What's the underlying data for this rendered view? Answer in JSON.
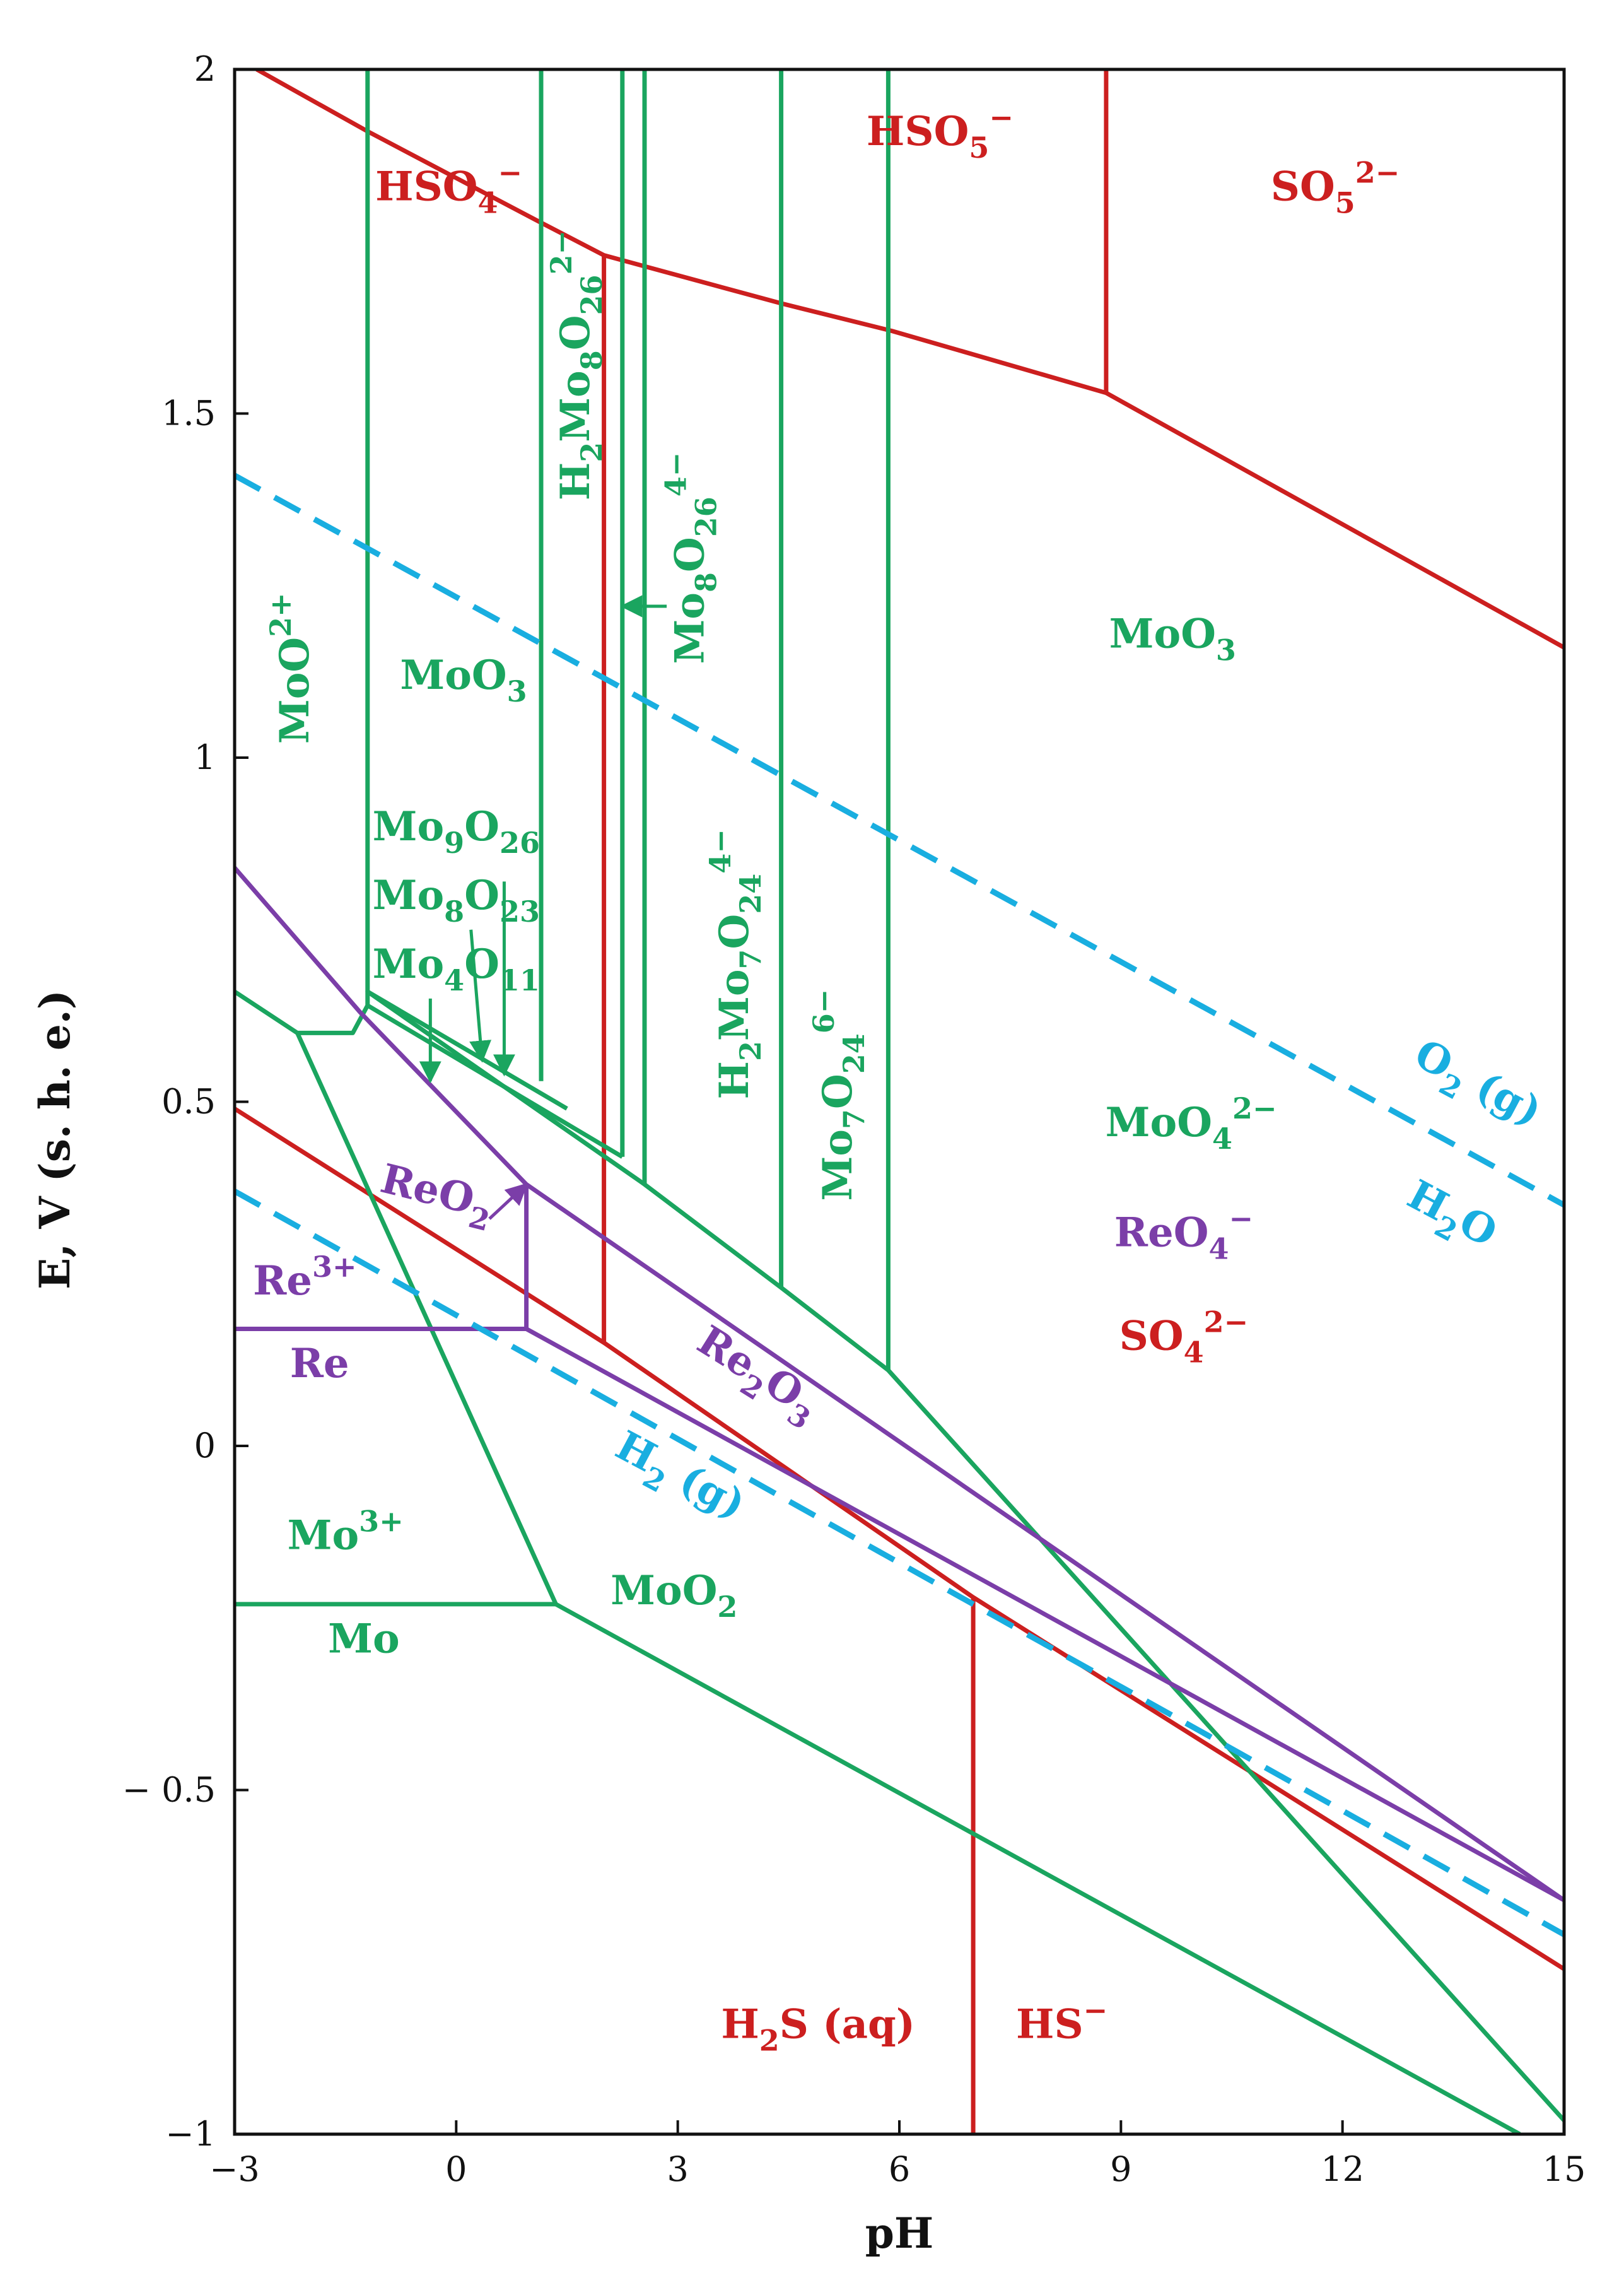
{
  "chart_data": {
    "type": "line",
    "title": "",
    "xlabel": "pH",
    "ylabel": "E, V (s. h. e.)",
    "xlim": [
      -3,
      15
    ],
    "ylim": [
      -1,
      2
    ],
    "xticks": [
      -3,
      0,
      3,
      6,
      9,
      12,
      15
    ],
    "xtick_labels": [
      "−3",
      "0",
      "3",
      "6",
      "9",
      "12",
      "15"
    ],
    "yticks": [
      -1,
      -0.5,
      0,
      0.5,
      1,
      1.5,
      2
    ],
    "ytick_labels": [
      "−1",
      "− 0.5",
      "0",
      "0.5",
      "1",
      "1.5",
      "2"
    ],
    "colors": {
      "sulfur": "#cc1f1f",
      "molybdenum": "#1aa55f",
      "rhenium": "#7b3ea8",
      "water": "#19aee0",
      "axis": "#111111"
    },
    "series": [
      {
        "name": "S: HSO4- / HSO5- upper",
        "color": "sulfur",
        "style": "solid",
        "points": [
          [
            -2.7,
            2.0
          ],
          [
            -1.2,
            1.91
          ],
          [
            1.1,
            1.78
          ],
          [
            2.0,
            1.73
          ],
          [
            4.4,
            1.66
          ],
          [
            5.9,
            1.62
          ],
          [
            8.8,
            1.53
          ],
          [
            15,
            1.16
          ]
        ]
      },
      {
        "name": "S: HSO5- / SO5 2- boundary",
        "color": "sulfur",
        "style": "solid",
        "points": [
          [
            8.8,
            2.0
          ],
          [
            8.8,
            1.53
          ]
        ]
      },
      {
        "name": "S: HSO4- / SO4 2- boundary",
        "color": "sulfur",
        "style": "solid",
        "points": [
          [
            2.0,
            1.73
          ],
          [
            2.0,
            0.15
          ]
        ]
      },
      {
        "name": "S: sulfate / sulfide line",
        "color": "sulfur",
        "style": "solid",
        "points": [
          [
            -3,
            0.49
          ],
          [
            2.0,
            0.15
          ],
          [
            7.0,
            -0.22
          ],
          [
            15,
            -0.76
          ]
        ]
      },
      {
        "name": "S: H2S(aq) / HS- boundary",
        "color": "sulfur",
        "style": "solid",
        "points": [
          [
            7.0,
            -0.22
          ],
          [
            7.0,
            -1.0
          ]
        ]
      },
      {
        "name": "Mo: MoO2+ / MoO3",
        "color": "molybdenum",
        "style": "solid",
        "points": [
          [
            -1.2,
            2.0
          ],
          [
            -1.2,
            0.66
          ]
        ]
      },
      {
        "name": "Mo: MoO3 / H2Mo8O26 2-",
        "color": "molybdenum",
        "style": "solid",
        "points": [
          [
            1.15,
            2.0
          ],
          [
            1.15,
            0.53
          ]
        ]
      },
      {
        "name": "Mo: H2Mo8O26 2- / Mo8O26 4-",
        "color": "molybdenum",
        "style": "solid",
        "points": [
          [
            2.25,
            2.0
          ],
          [
            2.25,
            0.42
          ]
        ]
      },
      {
        "name": "Mo: Mo8O26 4- / H2Mo7O24 4-",
        "color": "molybdenum",
        "style": "solid",
        "points": [
          [
            2.55,
            2.0
          ],
          [
            2.55,
            0.38
          ]
        ]
      },
      {
        "name": "Mo: H2Mo7O24 4- / Mo7O24 6-",
        "color": "molybdenum",
        "style": "solid",
        "points": [
          [
            4.4,
            2.0
          ],
          [
            4.4,
            0.23
          ]
        ]
      },
      {
        "name": "Mo: Mo7O24 6- / MoO4 2-",
        "color": "molybdenum",
        "style": "solid",
        "points": [
          [
            5.85,
            2.0
          ],
          [
            5.85,
            0.11
          ]
        ]
      },
      {
        "name": "Mo: Mo oxides lower boundary 1",
        "color": "molybdenum",
        "style": "solid",
        "points": [
          [
            -1.2,
            0.66
          ],
          [
            1.5,
            0.49
          ]
        ]
      },
      {
        "name": "Mo: Mo oxides lower boundary 2",
        "color": "molybdenum",
        "style": "solid",
        "points": [
          [
            -1.2,
            0.64
          ],
          [
            2.25,
            0.42
          ]
        ]
      },
      {
        "name": "Mo: MoO2 / oxides boundary",
        "color": "molybdenum",
        "style": "solid",
        "points": [
          [
            -3,
            0.66
          ],
          [
            -2.15,
            0.6
          ],
          [
            -1.4,
            0.6
          ],
          [
            -1.2,
            0.64
          ],
          [
            -1.2,
            0.66
          ],
          [
            2.55,
            0.38
          ],
          [
            4.4,
            0.23
          ],
          [
            5.85,
            0.11
          ],
          [
            15,
            -0.98
          ]
        ]
      },
      {
        "name": "Mo: Mo3+ / MoO2 boundary",
        "color": "molybdenum",
        "style": "solid",
        "points": [
          [
            -2.15,
            0.6
          ],
          [
            1.35,
            -0.23
          ]
        ]
      },
      {
        "name": "Mo: Mo / Mo3+ boundary",
        "color": "molybdenum",
        "style": "solid",
        "points": [
          [
            -3,
            -0.23
          ],
          [
            1.35,
            -0.23
          ]
        ]
      },
      {
        "name": "Mo: Mo / MoO2 boundary",
        "color": "molybdenum",
        "style": "solid",
        "points": [
          [
            1.35,
            -0.23
          ],
          [
            14.4,
            -1.0
          ]
        ]
      },
      {
        "name": "Re: ReO2 / ReO4- upper",
        "color": "rhenium",
        "style": "solid",
        "points": [
          [
            -3,
            0.84
          ],
          [
            -1.3,
            0.63
          ],
          [
            0.95,
            0.38
          ],
          [
            15,
            -0.66
          ]
        ]
      },
      {
        "name": "Re: Re3+ / ReO2 boundary",
        "color": "rhenium",
        "style": "solid",
        "points": [
          [
            0.95,
            0.38
          ],
          [
            0.95,
            0.17
          ]
        ]
      },
      {
        "name": "Re: Re / Re3+ boundary",
        "color": "rhenium",
        "style": "solid",
        "points": [
          [
            -3,
            0.17
          ],
          [
            0.95,
            0.17
          ]
        ]
      },
      {
        "name": "Re: Re / Re2O3 lower",
        "color": "rhenium",
        "style": "solid",
        "points": [
          [
            0.95,
            0.17
          ],
          [
            15,
            -0.66
          ]
        ]
      },
      {
        "name": "Water: O2(g) / H2O",
        "color": "water",
        "style": "dashed",
        "points": [
          [
            -3,
            1.41
          ],
          [
            15,
            0.35
          ]
        ]
      },
      {
        "name": "Water: H2O / H2(g)",
        "color": "water",
        "style": "dashed",
        "points": [
          [
            -3,
            0.37
          ],
          [
            15,
            -0.71
          ]
        ]
      }
    ],
    "arrows": [
      {
        "name": "arrow-Mo8O26-4minus",
        "color": "molybdenum",
        "from": [
          2.85,
          1.22
        ],
        "to": [
          2.25,
          1.22
        ]
      },
      {
        "name": "arrow-Mo9O26",
        "color": "molybdenum",
        "from": [
          0.65,
          0.82
        ],
        "to": [
          0.65,
          0.54
        ]
      },
      {
        "name": "arrow-Mo8O23",
        "color": "molybdenum",
        "from": [
          0.2,
          0.75
        ],
        "to": [
          0.35,
          0.56
        ]
      },
      {
        "name": "arrow-Mo4O11",
        "color": "molybdenum",
        "from": [
          -0.35,
          0.65
        ],
        "to": [
          -0.35,
          0.53
        ]
      },
      {
        "name": "arrow-ReO2",
        "color": "rhenium",
        "from": [
          0.45,
          0.33
        ],
        "to": [
          0.95,
          0.38
        ]
      }
    ],
    "region_labels": [
      {
        "name": "label-HSO4-minus",
        "color": "sulfur",
        "x": -0.1,
        "y": 1.81,
        "rot": 0,
        "parts": [
          [
            "t",
            "HSO"
          ],
          [
            "s",
            "4"
          ],
          [
            "p",
            "−"
          ]
        ]
      },
      {
        "name": "label-HSO5-minus",
        "color": "sulfur",
        "x": 6.55,
        "y": 1.89,
        "rot": 0,
        "parts": [
          [
            "t",
            "HSO"
          ],
          [
            "s",
            "5"
          ],
          [
            "p",
            "−"
          ]
        ]
      },
      {
        "name": "label-SO5-2minus",
        "color": "sulfur",
        "x": 11.9,
        "y": 1.81,
        "rot": 0,
        "parts": [
          [
            "t",
            "SO"
          ],
          [
            "s",
            "5"
          ],
          [
            "p",
            "2−"
          ]
        ]
      },
      {
        "name": "label-MoO3-left",
        "color": "molybdenum",
        "x": 0.1,
        "y": 1.1,
        "rot": 0,
        "parts": [
          [
            "t",
            "MoO"
          ],
          [
            "s",
            "3"
          ]
        ]
      },
      {
        "name": "label-MoO3-right",
        "color": "molybdenum",
        "x": 9.7,
        "y": 1.16,
        "rot": 0,
        "parts": [
          [
            "t",
            "MoO"
          ],
          [
            "s",
            "3"
          ]
        ]
      },
      {
        "name": "label-MoO-2plus",
        "color": "molybdenum",
        "x": -2.0,
        "y": 1.13,
        "rot": -90,
        "parts": [
          [
            "t",
            "MoO"
          ],
          [
            "p",
            "2+"
          ]
        ]
      },
      {
        "name": "label-H2Mo8O26-2minus",
        "color": "molybdenum",
        "x": 1.8,
        "y": 1.57,
        "rot": -90,
        "parts": [
          [
            "t",
            "H"
          ],
          [
            "s",
            "2"
          ],
          [
            "t",
            "Mo"
          ],
          [
            "s",
            "8"
          ],
          [
            "t",
            "O"
          ],
          [
            "s",
            "26"
          ],
          [
            "p",
            "2−"
          ]
        ]
      },
      {
        "name": "label-Mo8O26-4minus",
        "color": "molybdenum",
        "x": 3.35,
        "y": 1.29,
        "rot": -90,
        "parts": [
          [
            "t",
            "Mo"
          ],
          [
            "s",
            "8"
          ],
          [
            "t",
            "O"
          ],
          [
            "s",
            "26"
          ],
          [
            "p",
            "4−"
          ]
        ]
      },
      {
        "name": "label-Mo9O26",
        "color": "molybdenum",
        "x": 0.0,
        "y": 0.88,
        "rot": 0,
        "parts": [
          [
            "t",
            "Mo"
          ],
          [
            "s",
            "9"
          ],
          [
            "t",
            "O"
          ],
          [
            "s",
            "26"
          ]
        ]
      },
      {
        "name": "label-Mo8O23",
        "color": "molybdenum",
        "x": 0.0,
        "y": 0.78,
        "rot": 0,
        "parts": [
          [
            "t",
            "Mo"
          ],
          [
            "s",
            "8"
          ],
          [
            "t",
            "O"
          ],
          [
            "s",
            "23"
          ]
        ]
      },
      {
        "name": "label-Mo4O11",
        "color": "molybdenum",
        "x": 0.0,
        "y": 0.68,
        "rot": 0,
        "parts": [
          [
            "t",
            "Mo"
          ],
          [
            "s",
            "4"
          ],
          [
            "t",
            "O"
          ],
          [
            "s",
            "11"
          ]
        ]
      },
      {
        "name": "label-H2Mo7O24-4minus",
        "color": "molybdenum",
        "x": 3.95,
        "y": 0.7,
        "rot": -90,
        "parts": [
          [
            "t",
            "H"
          ],
          [
            "s",
            "2"
          ],
          [
            "t",
            "Mo"
          ],
          [
            "s",
            "7"
          ],
          [
            "t",
            "O"
          ],
          [
            "s",
            "24"
          ],
          [
            "p",
            "4−"
          ]
        ]
      },
      {
        "name": "label-Mo7O24-6minus",
        "color": "molybdenum",
        "x": 5.35,
        "y": 0.51,
        "rot": -90,
        "parts": [
          [
            "t",
            "Mo"
          ],
          [
            "s",
            "7"
          ],
          [
            "t",
            "O"
          ],
          [
            "s",
            "24"
          ],
          [
            "p",
            "6−"
          ]
        ]
      },
      {
        "name": "label-MoO4-2minus",
        "color": "molybdenum",
        "x": 9.95,
        "y": 0.45,
        "rot": 0,
        "parts": [
          [
            "t",
            "MoO"
          ],
          [
            "s",
            "4"
          ],
          [
            "p",
            "2−"
          ]
        ]
      },
      {
        "name": "label-ReO4-minus",
        "color": "rhenium",
        "x": 9.85,
        "y": 0.29,
        "rot": 0,
        "parts": [
          [
            "t",
            "ReO"
          ],
          [
            "s",
            "4"
          ],
          [
            "p",
            "−"
          ]
        ]
      },
      {
        "name": "label-SO4-2minus",
        "color": "sulfur",
        "x": 9.85,
        "y": 0.14,
        "rot": 0,
        "parts": [
          [
            "t",
            "SO"
          ],
          [
            "s",
            "4"
          ],
          [
            "p",
            "2−"
          ]
        ]
      },
      {
        "name": "label-ReO2",
        "color": "rhenium",
        "x": -0.3,
        "y": 0.35,
        "rot": 14,
        "parts": [
          [
            "t",
            "ReO"
          ],
          [
            "s",
            "2"
          ]
        ]
      },
      {
        "name": "label-Re-3plus",
        "color": "rhenium",
        "x": -2.05,
        "y": 0.22,
        "rot": 0,
        "parts": [
          [
            "t",
            "Re"
          ],
          [
            "p",
            "3+"
          ]
        ]
      },
      {
        "name": "label-Re",
        "color": "rhenium",
        "x": -1.85,
        "y": 0.1,
        "rot": 0,
        "parts": [
          [
            "t",
            "Re"
          ]
        ]
      },
      {
        "name": "label-Re2O3",
        "color": "rhenium",
        "x": 4.0,
        "y": 0.09,
        "rot": 32,
        "parts": [
          [
            "t",
            "Re"
          ],
          [
            "s",
            "2"
          ],
          [
            "t",
            "O"
          ],
          [
            "s",
            "3"
          ]
        ]
      },
      {
        "name": "label-H2-g",
        "color": "water",
        "x": 2.95,
        "y": -0.06,
        "rot": 28,
        "parts": [
          [
            "t",
            "H"
          ],
          [
            "s",
            "2"
          ],
          [
            "t",
            " (g)"
          ]
        ]
      },
      {
        "name": "label-O2-g",
        "color": "water",
        "x": 13.75,
        "y": 0.51,
        "rot": 28,
        "parts": [
          [
            "t",
            "O"
          ],
          [
            "s",
            "2"
          ],
          [
            "t",
            " (g)"
          ]
        ]
      },
      {
        "name": "label-H2O",
        "color": "water",
        "x": 13.4,
        "y": 0.32,
        "rot": 28,
        "parts": [
          [
            "t",
            "H"
          ],
          [
            "s",
            "2"
          ],
          [
            "t",
            "O"
          ]
        ]
      },
      {
        "name": "label-Mo-3plus",
        "color": "molybdenum",
        "x": -1.5,
        "y": -0.15,
        "rot": 0,
        "parts": [
          [
            "t",
            "Mo"
          ],
          [
            "p",
            "3+"
          ]
        ]
      },
      {
        "name": "label-Mo",
        "color": "molybdenum",
        "x": -1.25,
        "y": -0.3,
        "rot": 0,
        "parts": [
          [
            "t",
            "Mo"
          ]
        ]
      },
      {
        "name": "label-MoO2",
        "color": "molybdenum",
        "x": 2.95,
        "y": -0.23,
        "rot": 0,
        "parts": [
          [
            "t",
            "MoO"
          ],
          [
            "s",
            "2"
          ]
        ]
      },
      {
        "name": "label-H2S-aq",
        "color": "sulfur",
        "x": 4.9,
        "y": -0.86,
        "rot": 0,
        "parts": [
          [
            "t",
            "H"
          ],
          [
            "s",
            "2"
          ],
          [
            "t",
            "S (aq)"
          ]
        ]
      },
      {
        "name": "label-HS-minus",
        "color": "sulfur",
        "x": 8.2,
        "y": -0.86,
        "rot": 0,
        "parts": [
          [
            "t",
            "HS"
          ],
          [
            "p",
            "−"
          ]
        ]
      }
    ]
  }
}
